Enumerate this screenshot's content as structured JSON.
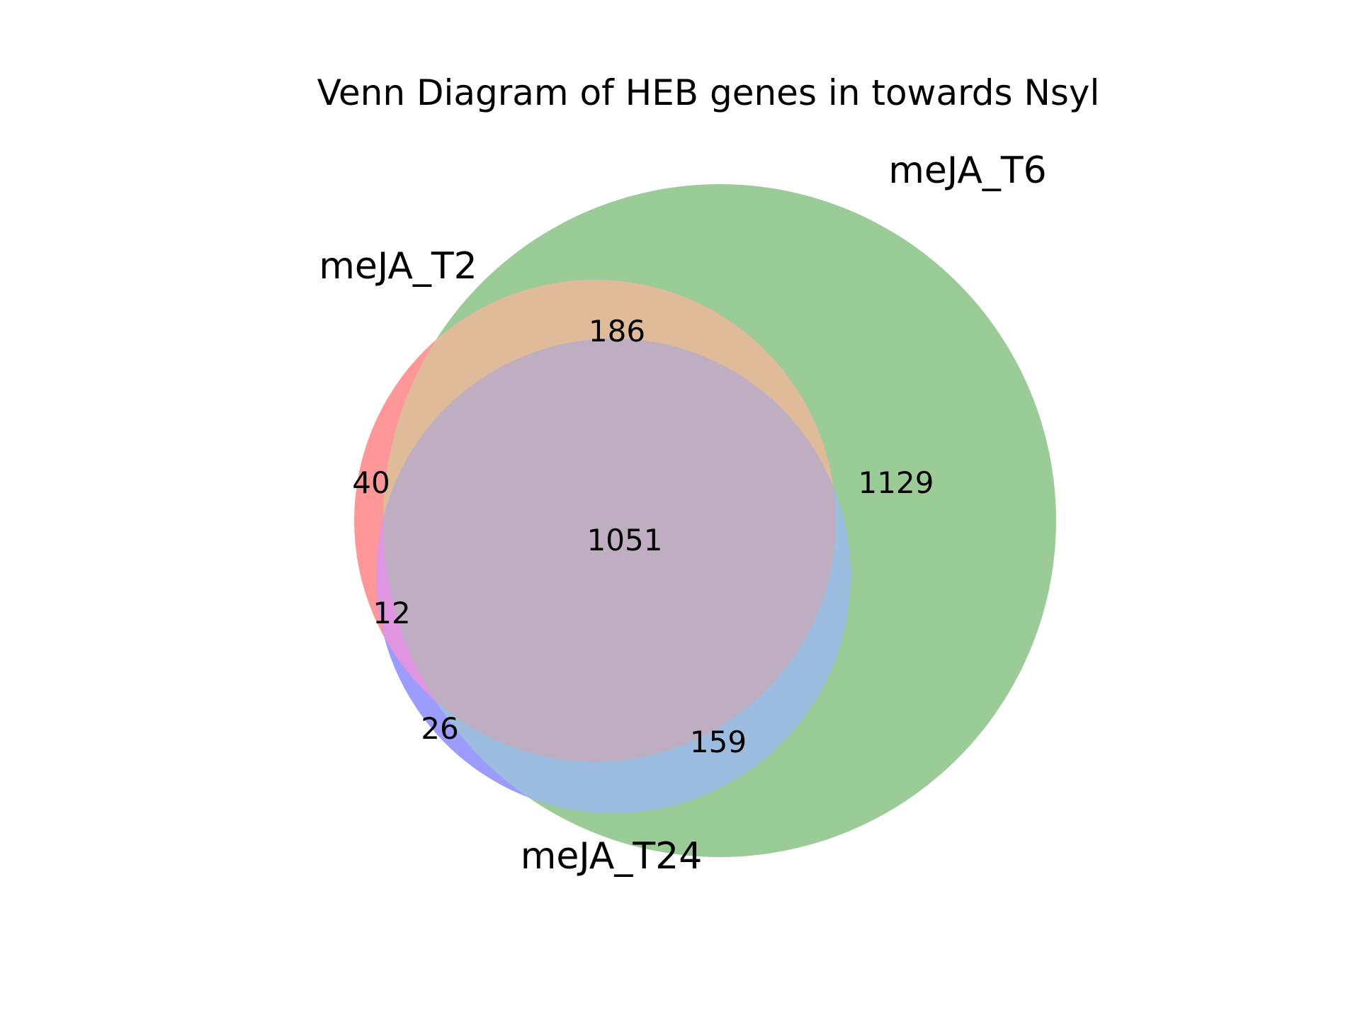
{
  "chart_data": {
    "type": "venn3",
    "title": "Venn Diagram of HEB genes in towards Nsyl",
    "sets": [
      {
        "name": "meJA_T2",
        "color": "#ff0000"
      },
      {
        "name": "meJA_T6",
        "color": "#008000"
      },
      {
        "name": "meJA_T24",
        "color": "#0000ff"
      }
    ],
    "regions": {
      "only_meJA_T2": "40",
      "only_meJA_T6": "1129",
      "only_meJA_T24": "26",
      "meJA_T2_and_meJA_T6": "186",
      "meJA_T2_and_meJA_T24": "12",
      "meJA_T6_and_meJA_T24": "159",
      "all_three": "1051"
    }
  }
}
